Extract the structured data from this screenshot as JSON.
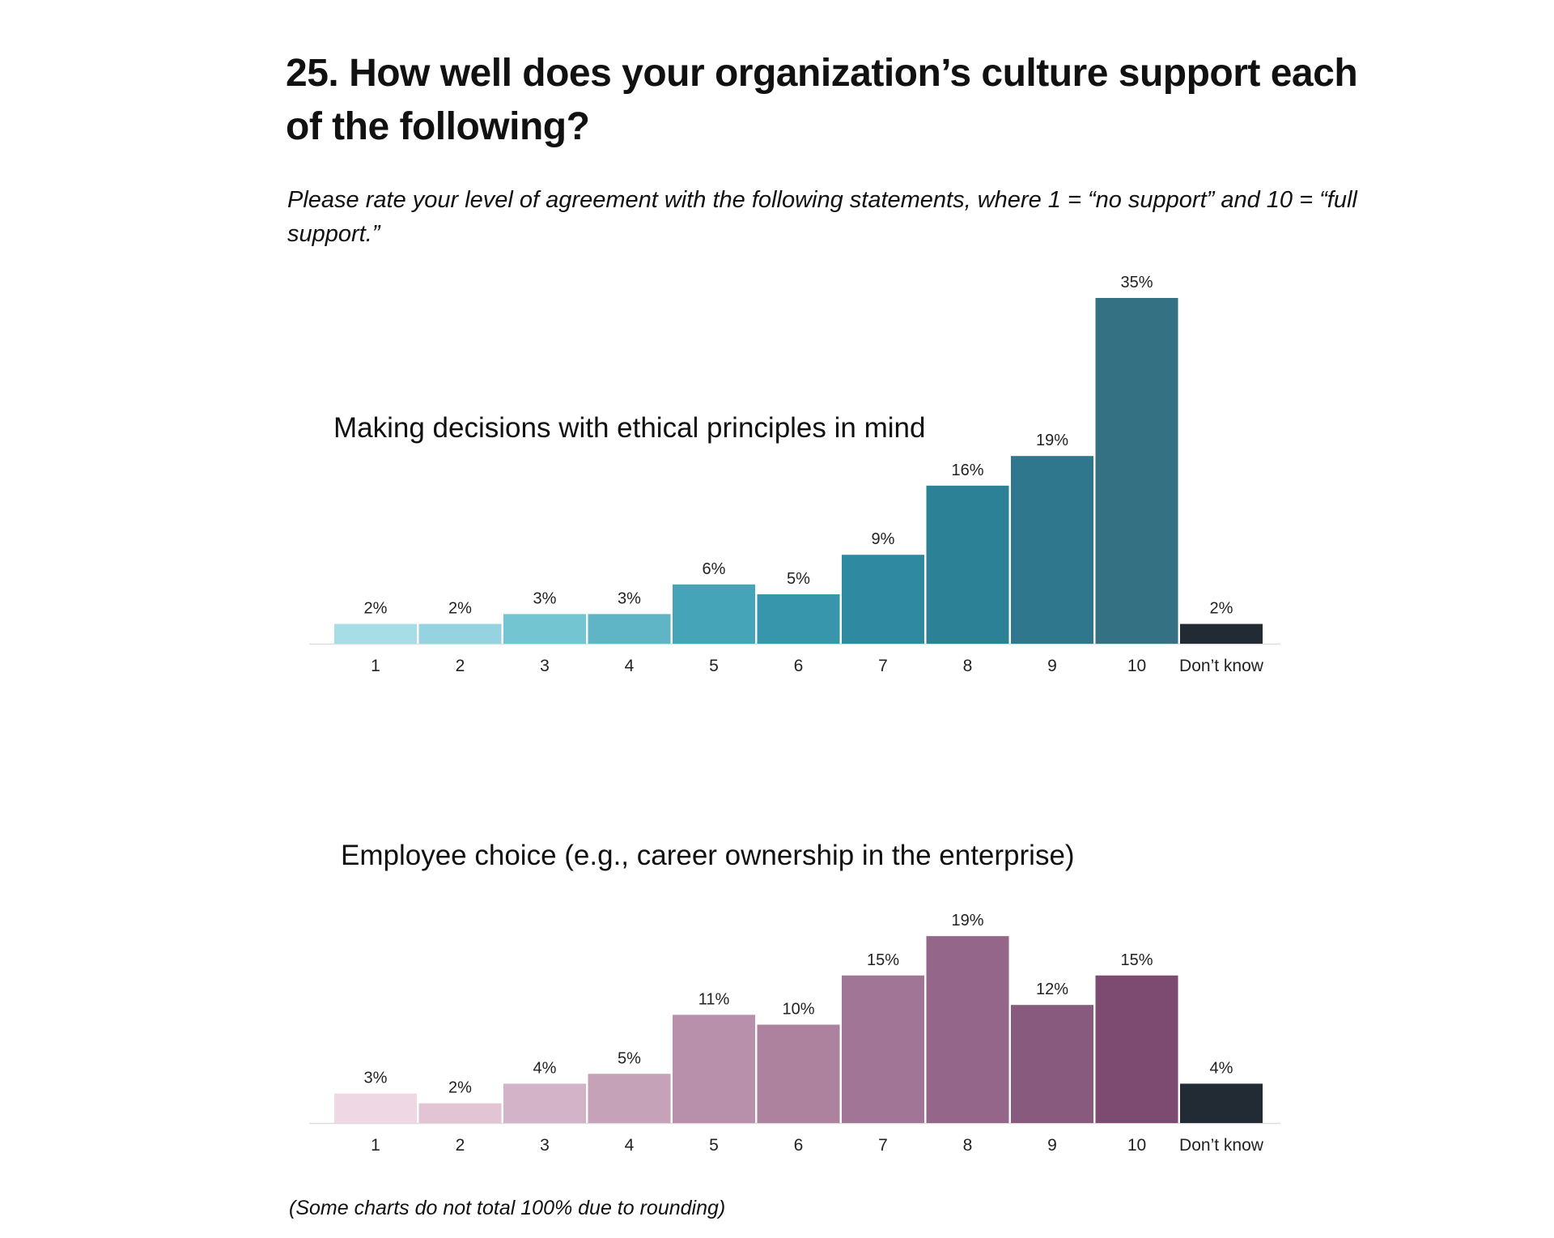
{
  "header": {
    "title": "25. How well does your organization’s culture support each of the following?",
    "subtitle": "Please rate your level of agreement with the following statements, where 1 = “no support” and 10 = “full support.”"
  },
  "footnote": "(Some charts do not total 100% due to rounding)",
  "chart_data": [
    {
      "type": "bar",
      "title": "Making decisions with ethical principles in mind",
      "categories": [
        "1",
        "2",
        "3",
        "4",
        "5",
        "6",
        "7",
        "8",
        "9",
        "10",
        "Don’t know"
      ],
      "values": [
        2,
        2,
        3,
        3,
        6,
        5,
        9,
        16,
        19,
        35,
        2
      ],
      "labels": [
        "2%",
        "2%",
        "3%",
        "3%",
        "6%",
        "5%",
        "9%",
        "16%",
        "19%",
        "35%",
        "2%"
      ],
      "unit": "%",
      "colors": [
        "#a6dde6",
        "#94d3df",
        "#74c5d2",
        "#5fb5c6",
        "#46a4b9",
        "#3796ac",
        "#2f8aa1",
        "#2d8196",
        "#2f778d",
        "#337183",
        "#222a33"
      ],
      "ylim": [
        0,
        35
      ],
      "grid": false,
      "legend": "none"
    },
    {
      "type": "bar",
      "title": "Employee choice (e.g., career ownership in the enterprise)",
      "categories": [
        "1",
        "2",
        "3",
        "4",
        "5",
        "6",
        "7",
        "8",
        "9",
        "10",
        "Don’t know"
      ],
      "values": [
        3,
        2,
        4,
        5,
        11,
        10,
        15,
        19,
        12,
        15,
        4
      ],
      "labels": [
        "3%",
        "2%",
        "4%",
        "5%",
        "11%",
        "10%",
        "15%",
        "19%",
        "12%",
        "15%",
        "4%"
      ],
      "unit": "%",
      "colors": [
        "#efd7e3",
        "#e2c4d5",
        "#d3b3c8",
        "#c6a2b9",
        "#b990ab",
        "#ad829f",
        "#a17595",
        "#94678a",
        "#875a7e",
        "#7d4a71",
        "#222a33"
      ],
      "ylim": [
        0,
        19
      ],
      "grid": false,
      "legend": "none"
    }
  ]
}
